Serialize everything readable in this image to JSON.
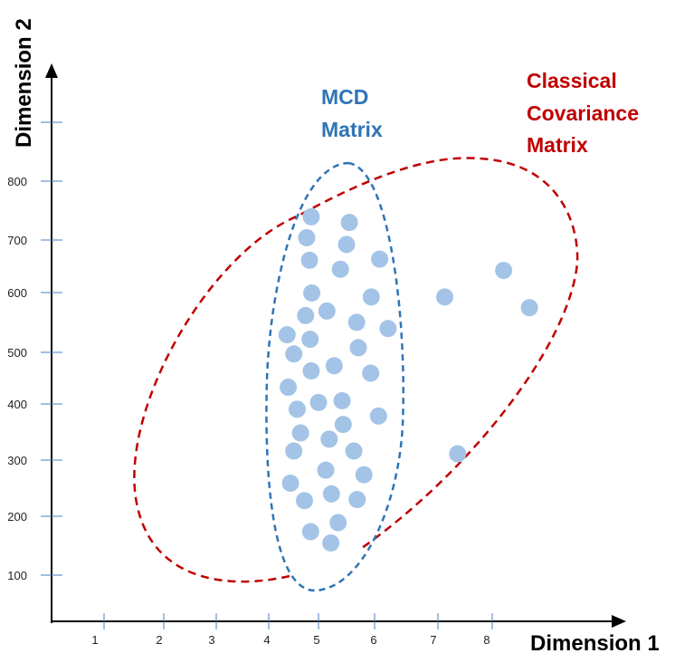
{
  "chart_data": {
    "type": "scatter",
    "xlabel": "Dimension 1",
    "ylabel": "Dimension 2",
    "x_ticks": [
      "1",
      "2",
      "3",
      "4",
      "5",
      "6",
      "7",
      "8"
    ],
    "y_ticks": [
      "100",
      "200",
      "300",
      "400",
      "500",
      "600",
      "700",
      "800"
    ],
    "grid": false,
    "points": [
      {
        "x": 4.87,
        "y": 735
      },
      {
        "x": 5.55,
        "y": 725
      },
      {
        "x": 4.79,
        "y": 698
      },
      {
        "x": 5.5,
        "y": 686
      },
      {
        "x": 4.84,
        "y": 658
      },
      {
        "x": 5.39,
        "y": 642
      },
      {
        "x": 6.09,
        "y": 660
      },
      {
        "x": 4.88,
        "y": 600
      },
      {
        "x": 5.15,
        "y": 568
      },
      {
        "x": 5.94,
        "y": 593
      },
      {
        "x": 4.77,
        "y": 560
      },
      {
        "x": 5.68,
        "y": 548
      },
      {
        "x": 6.24,
        "y": 537
      },
      {
        "x": 4.44,
        "y": 526
      },
      {
        "x": 4.85,
        "y": 518
      },
      {
        "x": 4.56,
        "y": 492
      },
      {
        "x": 5.71,
        "y": 503
      },
      {
        "x": 5.28,
        "y": 471
      },
      {
        "x": 4.87,
        "y": 462
      },
      {
        "x": 5.93,
        "y": 458
      },
      {
        "x": 4.46,
        "y": 433
      },
      {
        "x": 5.0,
        "y": 406
      },
      {
        "x": 5.42,
        "y": 409
      },
      {
        "x": 4.62,
        "y": 394
      },
      {
        "x": 6.07,
        "y": 382
      },
      {
        "x": 5.44,
        "y": 367
      },
      {
        "x": 4.68,
        "y": 352
      },
      {
        "x": 5.19,
        "y": 341
      },
      {
        "x": 4.56,
        "y": 320
      },
      {
        "x": 5.63,
        "y": 320
      },
      {
        "x": 5.13,
        "y": 286
      },
      {
        "x": 5.81,
        "y": 278
      },
      {
        "x": 4.5,
        "y": 263
      },
      {
        "x": 5.23,
        "y": 244
      },
      {
        "x": 4.75,
        "y": 232
      },
      {
        "x": 5.69,
        "y": 234
      },
      {
        "x": 5.35,
        "y": 193
      },
      {
        "x": 4.86,
        "y": 177
      },
      {
        "x": 5.22,
        "y": 157
      },
      {
        "x": 7.25,
        "y": 593
      },
      {
        "x": 8.3,
        "y": 640
      },
      {
        "x": 8.76,
        "y": 574
      },
      {
        "x": 7.48,
        "y": 315
      }
    ],
    "point_color": "#a3c4e6",
    "annotations": [
      {
        "lines": [
          "MCD",
          "Matrix"
        ],
        "color": "#2e75b6"
      },
      {
        "lines": [
          "Classical",
          "Covariance",
          "Matrix"
        ],
        "color": "#c00000"
      }
    ],
    "ellipses": [
      {
        "name": "MCD Matrix",
        "color": "#2e75b6",
        "style": "dashed"
      },
      {
        "name": "Classical Covariance Matrix",
        "color": "#c00000",
        "style": "dashed"
      }
    ]
  }
}
